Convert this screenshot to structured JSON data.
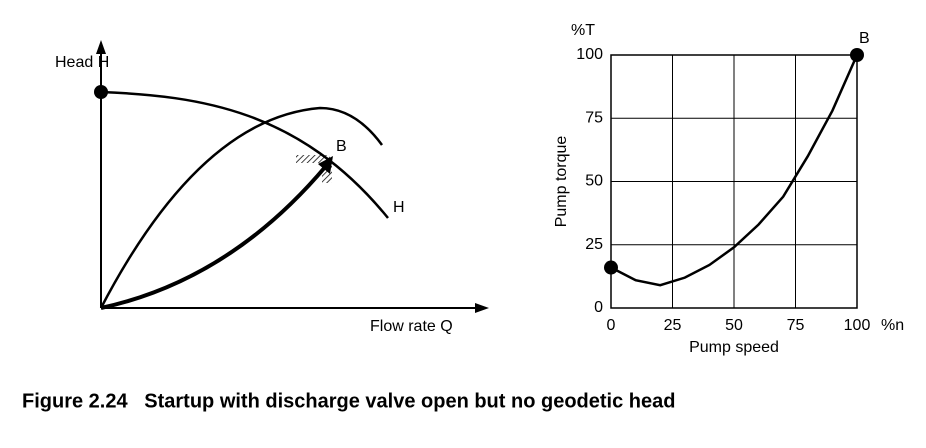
{
  "left_diagram": {
    "y_label": "Head H",
    "x_label": "Flow rate Q",
    "point_label": "B",
    "curve_label": "H"
  },
  "chart_data": {
    "type": "line",
    "x_label": "Pump speed",
    "y_label": "Pump torque",
    "x_unit": "%n",
    "y_unit": "%T",
    "point_label": "B",
    "x": [
      0,
      10,
      20,
      30,
      40,
      50,
      60,
      70,
      80,
      90,
      100
    ],
    "series": [
      {
        "name": "Pump torque",
        "color": "#000000",
        "values": [
          16,
          11,
          9,
          12,
          17,
          24,
          33,
          44,
          60,
          78,
          100
        ]
      }
    ],
    "xlim": [
      0,
      100
    ],
    "ylim": [
      0,
      100
    ],
    "xticks": [
      0,
      25,
      50,
      75,
      100
    ],
    "yticks": [
      0,
      25,
      50,
      75,
      100
    ],
    "grid": true
  },
  "figure": {
    "caption": "Figure 2.24   Startup with discharge valve open but no geodetic head"
  }
}
